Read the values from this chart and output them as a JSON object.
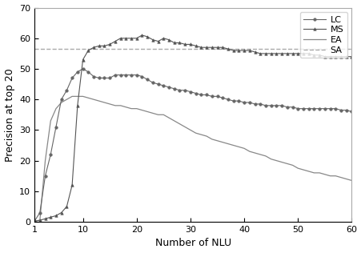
{
  "title": "",
  "xlabel": "Number of NLU",
  "ylabel": "Precision at top 20",
  "xlim": [
    1,
    60
  ],
  "ylim": [
    0,
    70
  ],
  "yticks": [
    0,
    10,
    20,
    30,
    40,
    50,
    60,
    70
  ],
  "xticks": [
    1,
    10,
    20,
    30,
    40,
    50,
    60
  ],
  "sa_value": 56.5,
  "lc_color": "#666666",
  "ms_color": "#555555",
  "ea_color": "#888888",
  "sa_color": "#aaaaaa",
  "lc_marker": "o",
  "ms_marker": "^",
  "lc_data": [
    [
      1,
      0.2
    ],
    [
      2,
      3
    ],
    [
      3,
      15
    ],
    [
      4,
      22
    ],
    [
      5,
      31
    ],
    [
      6,
      40
    ],
    [
      7,
      43
    ],
    [
      8,
      47
    ],
    [
      9,
      49
    ],
    [
      10,
      50
    ],
    [
      11,
      49
    ],
    [
      12,
      47.5
    ],
    [
      13,
      47
    ],
    [
      14,
      47
    ],
    [
      15,
      47
    ],
    [
      16,
      48
    ],
    [
      17,
      48
    ],
    [
      18,
      48
    ],
    [
      19,
      48
    ],
    [
      20,
      48
    ],
    [
      21,
      47.5
    ],
    [
      22,
      46.5
    ],
    [
      23,
      45.5
    ],
    [
      24,
      45
    ],
    [
      25,
      44.5
    ],
    [
      26,
      44
    ],
    [
      27,
      43.5
    ],
    [
      28,
      43
    ],
    [
      29,
      43
    ],
    [
      30,
      42.5
    ],
    [
      31,
      42
    ],
    [
      32,
      41.5
    ],
    [
      33,
      41.5
    ],
    [
      34,
      41
    ],
    [
      35,
      41
    ],
    [
      36,
      40.5
    ],
    [
      37,
      40
    ],
    [
      38,
      39.5
    ],
    [
      39,
      39.5
    ],
    [
      40,
      39
    ],
    [
      41,
      39
    ],
    [
      42,
      38.5
    ],
    [
      43,
      38.5
    ],
    [
      44,
      38
    ],
    [
      45,
      38
    ],
    [
      46,
      38
    ],
    [
      47,
      38
    ],
    [
      48,
      37.5
    ],
    [
      49,
      37.5
    ],
    [
      50,
      37
    ],
    [
      51,
      37
    ],
    [
      52,
      37
    ],
    [
      53,
      37
    ],
    [
      54,
      37
    ],
    [
      55,
      37
    ],
    [
      56,
      37
    ],
    [
      57,
      37
    ],
    [
      58,
      36.5
    ],
    [
      59,
      36.5
    ],
    [
      60,
      36
    ]
  ],
  "ms_data": [
    [
      1,
      0.2
    ],
    [
      2,
      0.5
    ],
    [
      3,
      1
    ],
    [
      4,
      1.5
    ],
    [
      5,
      2
    ],
    [
      6,
      3
    ],
    [
      7,
      5
    ],
    [
      8,
      12
    ],
    [
      9,
      38
    ],
    [
      10,
      53
    ],
    [
      11,
      56
    ],
    [
      12,
      57
    ],
    [
      13,
      57.5
    ],
    [
      14,
      57.5
    ],
    [
      15,
      58
    ],
    [
      16,
      59
    ],
    [
      17,
      60
    ],
    [
      18,
      60
    ],
    [
      19,
      60
    ],
    [
      20,
      60
    ],
    [
      21,
      61
    ],
    [
      22,
      60.5
    ],
    [
      23,
      59.5
    ],
    [
      24,
      59
    ],
    [
      25,
      60
    ],
    [
      26,
      59.5
    ],
    [
      27,
      58.5
    ],
    [
      28,
      58.5
    ],
    [
      29,
      58
    ],
    [
      30,
      58
    ],
    [
      31,
      57.5
    ],
    [
      32,
      57
    ],
    [
      33,
      57
    ],
    [
      34,
      57
    ],
    [
      35,
      57
    ],
    [
      36,
      57
    ],
    [
      37,
      56.5
    ],
    [
      38,
      56
    ],
    [
      39,
      56
    ],
    [
      40,
      56
    ],
    [
      41,
      56
    ],
    [
      42,
      55.5
    ],
    [
      43,
      55
    ],
    [
      44,
      55
    ],
    [
      45,
      55
    ],
    [
      46,
      55
    ],
    [
      47,
      55
    ],
    [
      48,
      55
    ],
    [
      49,
      55
    ],
    [
      50,
      55
    ],
    [
      51,
      55
    ],
    [
      52,
      55
    ],
    [
      53,
      54.5
    ],
    [
      54,
      54.5
    ],
    [
      55,
      54
    ],
    [
      56,
      54
    ],
    [
      57,
      54
    ],
    [
      58,
      54
    ],
    [
      59,
      54
    ],
    [
      60,
      54
    ]
  ],
  "ea_data": [
    [
      1,
      0.2
    ],
    [
      2,
      0.5
    ],
    [
      3,
      20
    ],
    [
      4,
      33
    ],
    [
      5,
      37
    ],
    [
      6,
      39
    ],
    [
      7,
      40
    ],
    [
      8,
      41
    ],
    [
      9,
      41
    ],
    [
      10,
      41
    ],
    [
      11,
      40.5
    ],
    [
      12,
      40
    ],
    [
      13,
      39.5
    ],
    [
      14,
      39
    ],
    [
      15,
      38.5
    ],
    [
      16,
      38
    ],
    [
      17,
      38
    ],
    [
      18,
      37.5
    ],
    [
      19,
      37
    ],
    [
      20,
      37
    ],
    [
      21,
      36.5
    ],
    [
      22,
      36
    ],
    [
      23,
      35.5
    ],
    [
      24,
      35
    ],
    [
      25,
      35
    ],
    [
      26,
      34
    ],
    [
      27,
      33
    ],
    [
      28,
      32
    ],
    [
      29,
      31
    ],
    [
      30,
      30
    ],
    [
      31,
      29
    ],
    [
      32,
      28.5
    ],
    [
      33,
      28
    ],
    [
      34,
      27
    ],
    [
      35,
      26.5
    ],
    [
      36,
      26
    ],
    [
      37,
      25.5
    ],
    [
      38,
      25
    ],
    [
      39,
      24.5
    ],
    [
      40,
      24
    ],
    [
      41,
      23
    ],
    [
      42,
      22.5
    ],
    [
      43,
      22
    ],
    [
      44,
      21.5
    ],
    [
      45,
      20.5
    ],
    [
      46,
      20
    ],
    [
      47,
      19.5
    ],
    [
      48,
      19
    ],
    [
      49,
      18.5
    ],
    [
      50,
      17.5
    ],
    [
      51,
      17
    ],
    [
      52,
      16.5
    ],
    [
      53,
      16
    ],
    [
      54,
      16
    ],
    [
      55,
      15.5
    ],
    [
      56,
      15
    ],
    [
      57,
      15
    ],
    [
      58,
      14.5
    ],
    [
      59,
      14
    ],
    [
      60,
      13.5
    ]
  ],
  "figsize": [
    4.52,
    3.16
  ],
  "dpi": 100
}
